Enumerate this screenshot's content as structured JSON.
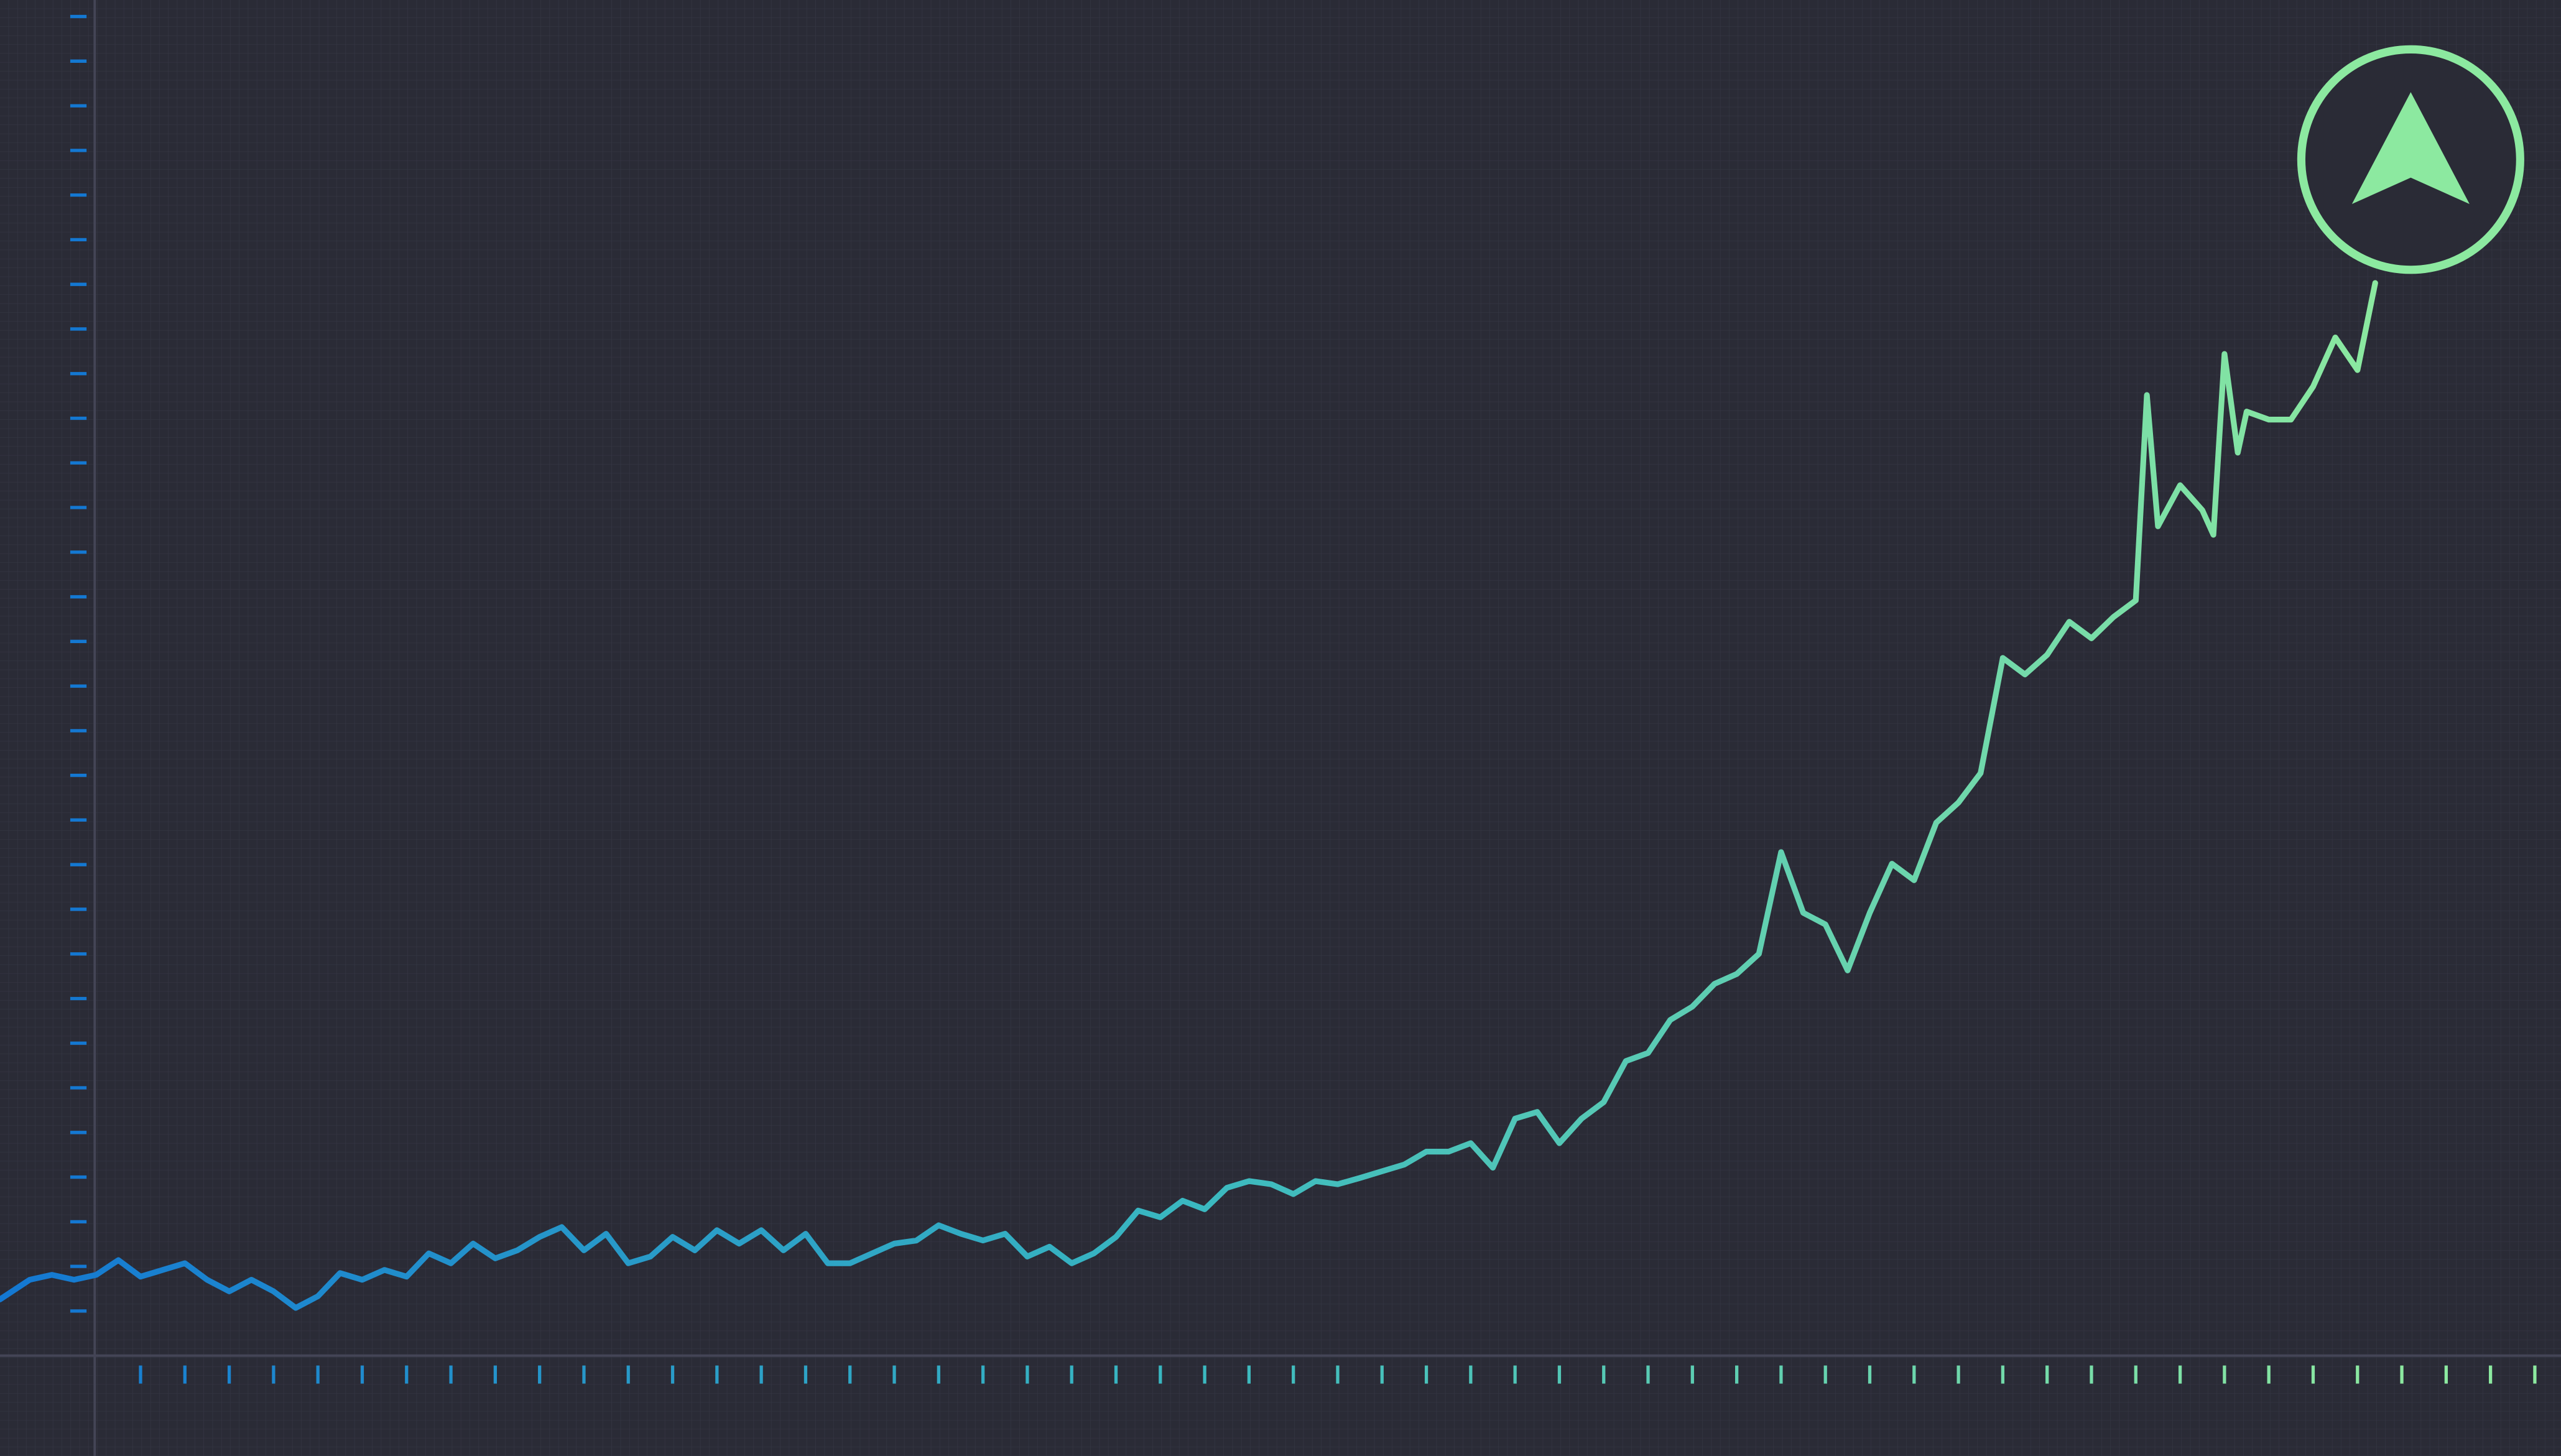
{
  "chart_data": {
    "type": "line",
    "x": [
      -3.17,
      -2.5,
      -2,
      -1.5,
      -1,
      -0.5,
      0,
      0.5,
      1,
      1.5,
      2,
      2.5,
      3,
      3.5,
      4,
      4.5,
      5,
      5.5,
      6,
      6.5,
      7,
      7.5,
      8,
      8.5,
      9,
      9.5,
      10,
      10.5,
      11,
      11.5,
      12,
      12.5,
      13,
      13.5,
      14,
      14.5,
      15,
      15.5,
      16,
      16.5,
      17,
      17.5,
      18,
      18.5,
      19,
      19.5,
      20,
      20.5,
      21,
      21.5,
      22,
      22.5,
      23,
      23.5,
      24,
      24.5,
      25,
      25.5,
      26,
      26.5,
      27,
      27.5,
      28,
      28.5,
      29,
      29.5,
      30,
      30.5,
      31,
      31.5,
      32,
      32.5,
      33,
      33.5,
      34,
      34.5,
      35,
      35.5,
      36,
      36.5,
      37,
      37.5,
      38,
      38.5,
      39,
      39.5,
      40,
      40.5,
      41,
      41.5,
      42,
      42.5,
      43,
      43.5,
      44,
      44.5,
      45,
      45.25,
      45.5,
      46,
      46.5,
      46.75,
      47,
      47.3,
      47.5,
      48,
      48.5,
      49,
      49.5,
      50,
      50.4
    ],
    "values": [
      0.26,
      0.7,
      0.81,
      0.7,
      0.81,
      1.14,
      0.77,
      0.92,
      1.07,
      0.7,
      0.44,
      0.7,
      0.44,
      0.07,
      0.33,
      0.85,
      0.7,
      0.92,
      0.77,
      1.29,
      1.07,
      1.51,
      1.18,
      1.36,
      1.66,
      1.88,
      1.36,
      1.73,
      1.07,
      1.22,
      1.66,
      1.36,
      1.81,
      1.51,
      1.81,
      1.36,
      1.73,
      1.07,
      1.07,
      1.29,
      1.51,
      1.58,
      1.92,
      1.73,
      1.58,
      1.73,
      1.22,
      1.44,
      1.07,
      1.29,
      1.66,
      2.25,
      2.1,
      2.47,
      2.28,
      2.76,
      2.91,
      2.84,
      2.62,
      2.91,
      2.84,
      2.98,
      3.13,
      3.28,
      3.57,
      3.57,
      3.76,
      3.21,
      4.31,
      4.46,
      3.76,
      4.31,
      4.68,
      5.6,
      5.78,
      6.52,
      6.82,
      7.33,
      7.55,
      8.0,
      10.28,
      8.92,
      8.66,
      7.63,
      8.92,
      10.02,
      9.65,
      10.94,
      11.39,
      12.05,
      14.63,
      14.26,
      14.7,
      15.44,
      15.07,
      15.55,
      15.92,
      20.52,
      17.58,
      18.5,
      17.94,
      17.39,
      21.44,
      19.23,
      20.15,
      19.97,
      19.97,
      20.71,
      21.81,
      21.08,
      23.03
    ],
    "gradient": [
      "#1478d2",
      "#3ab8c0",
      "#8ce9a0"
    ],
    "xlim": [
      -3.17,
      54.59
    ],
    "ylim": [
      -1,
      29.37
    ],
    "xticks": [
      0,
      1,
      2,
      3,
      4,
      5,
      6,
      7,
      8,
      9,
      10,
      11,
      12,
      13,
      14,
      15,
      16,
      17,
      18,
      19,
      20,
      21,
      22,
      23,
      24,
      25,
      26,
      27,
      28,
      29,
      30,
      31,
      32,
      33,
      34,
      35,
      36,
      37,
      38,
      39,
      40,
      41,
      42,
      43,
      44,
      45,
      46,
      47,
      48,
      49,
      50,
      51,
      52,
      53,
      54
    ],
    "yticks": [
      0,
      1,
      2,
      3,
      4,
      5,
      6,
      7,
      8,
      9,
      10,
      11,
      12,
      13,
      14,
      15,
      16,
      17,
      18,
      19,
      20,
      21,
      22,
      23,
      24,
      25,
      26,
      27,
      28,
      29
    ],
    "grid": true
  }
}
